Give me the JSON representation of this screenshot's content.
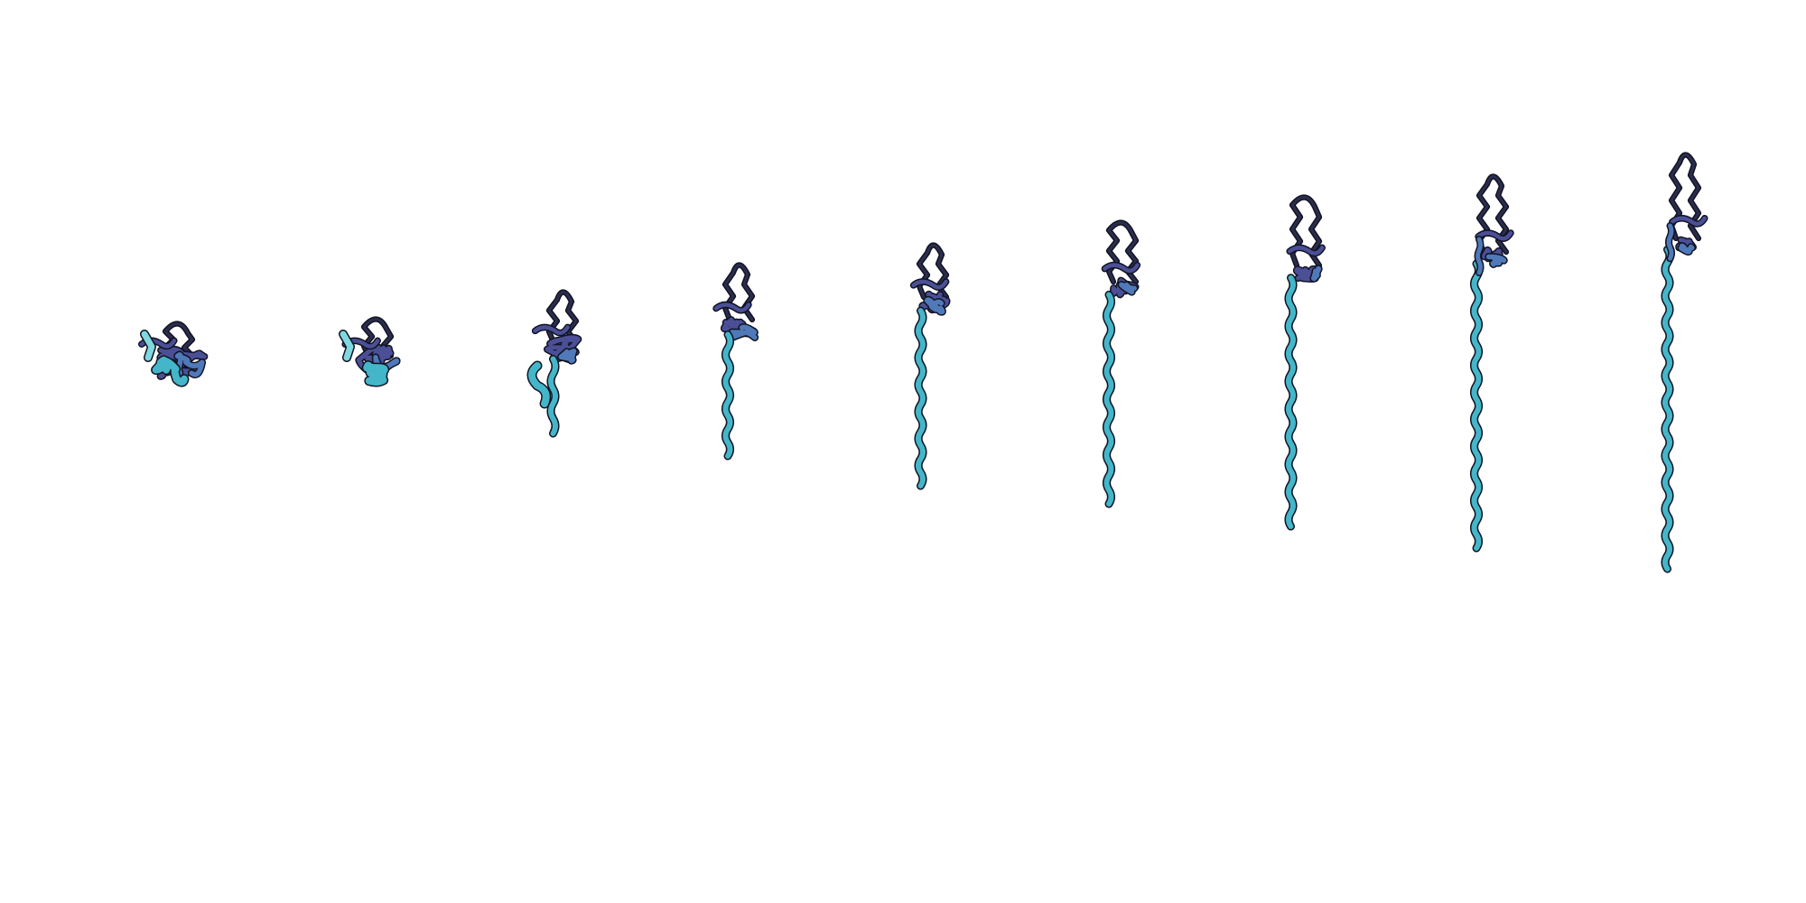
{
  "scene": {
    "description_visible_text": "",
    "structure_count": 9,
    "colors": {
      "background": "#ffffff",
      "outline": "#111322",
      "loop_dark": "#2b2d4d",
      "core_indigo": "#4a4f96",
      "mid_blue": "#4f79b8",
      "tail_cyan": "#44b6c9",
      "tail_light": "#7fd7df"
    },
    "structures": [
      {
        "name": "structure-1",
        "extension_stage": 1
      },
      {
        "name": "structure-2",
        "extension_stage": 2
      },
      {
        "name": "structure-3",
        "extension_stage": 3
      },
      {
        "name": "structure-4",
        "extension_stage": 4
      },
      {
        "name": "structure-5",
        "extension_stage": 5
      },
      {
        "name": "structure-6",
        "extension_stage": 6
      },
      {
        "name": "structure-7",
        "extension_stage": 7
      },
      {
        "name": "structure-8",
        "extension_stage": 8
      },
      {
        "name": "structure-9",
        "extension_stage": 9
      }
    ]
  }
}
